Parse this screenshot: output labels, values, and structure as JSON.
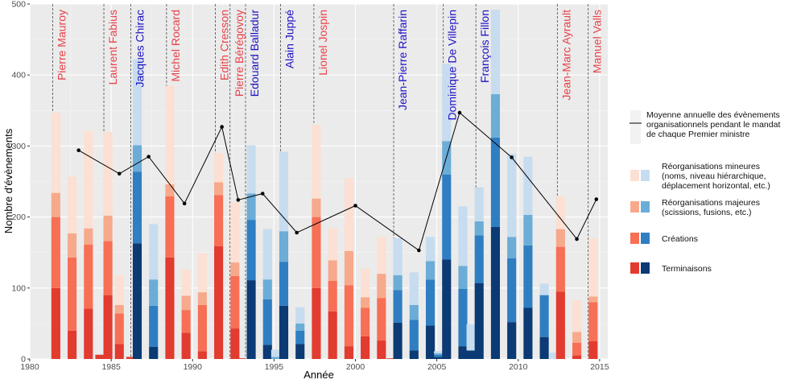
{
  "chart_data": {
    "type": "bar",
    "xlabel": "Année",
    "ylabel": "Nombre d'évènements",
    "xlim": [
      1980,
      2015.5
    ],
    "ylim": [
      0,
      500
    ],
    "xticks": [
      1980,
      1985,
      1990,
      1995,
      2000,
      2005,
      2010,
      2015
    ],
    "yticks": [
      0,
      100,
      200,
      300,
      400,
      500
    ],
    "grid": true,
    "legend_position": "right",
    "series_order": [
      "Terminaisons",
      "Créations",
      "Réorganisations majeures",
      "Réorganisations mineures"
    ],
    "colors": {
      "left": {
        "Terminaisons": "#e23b2f",
        "Créations": "#f76f55",
        "Réorganisations majeures": "#f7a98b",
        "Réorganisations mineures": "#fbe0d3"
      },
      "right": {
        "Terminaisons": "#0b3a74",
        "Créations": "#2f7ec2",
        "Réorganisations majeures": "#6badd6",
        "Réorganisations mineures": "#c7dcef"
      }
    },
    "bars": [
      {
        "year": 1981.6,
        "side": "left",
        "values": [
          100,
          100,
          34,
          113
        ]
      },
      {
        "year": 1982.6,
        "side": "left",
        "values": [
          40,
          103,
          34,
          80
        ]
      },
      {
        "year": 1983.6,
        "side": "left",
        "values": [
          71,
          90,
          23,
          137
        ]
      },
      {
        "year": 1984.3,
        "side": "left",
        "values": [
          6,
          0,
          0,
          0
        ]
      },
      {
        "year": 1984.8,
        "side": "left",
        "values": [
          90,
          76,
          36,
          118
        ]
      },
      {
        "year": 1985.5,
        "side": "left",
        "values": [
          21,
          43,
          12,
          42
        ]
      },
      {
        "year": 1986.2,
        "side": "left",
        "values": [
          3,
          0,
          0,
          0
        ]
      },
      {
        "year": 1986.6,
        "side": "right",
        "values": [
          163,
          101,
          37,
          121
        ]
      },
      {
        "year": 1987.6,
        "side": "right",
        "values": [
          17,
          58,
          37,
          78
        ]
      },
      {
        "year": 1988.6,
        "side": "left",
        "values": [
          143,
          86,
          17,
          139
        ]
      },
      {
        "year": 1989.6,
        "side": "left",
        "values": [
          37,
          32,
          20,
          37
        ]
      },
      {
        "year": 1990.6,
        "side": "left",
        "values": [
          11,
          65,
          18,
          55
        ]
      },
      {
        "year": 1991.6,
        "side": "left",
        "values": [
          159,
          72,
          18,
          41
        ]
      },
      {
        "year": 1992.6,
        "side": "left",
        "values": [
          43,
          74,
          19,
          85
        ]
      },
      {
        "year": 1993.0,
        "side": "left",
        "values": [
          1,
          0,
          0,
          0
        ]
      },
      {
        "year": 1993.6,
        "side": "right",
        "values": [
          111,
          85,
          37,
          68
        ]
      },
      {
        "year": 1994.6,
        "side": "right",
        "values": [
          20,
          64,
          28,
          71
        ]
      },
      {
        "year": 1995.1,
        "side": "right",
        "values": [
          0,
          0,
          3,
          10
        ]
      },
      {
        "year": 1995.6,
        "side": "right",
        "values": [
          75,
          62,
          43,
          112
        ]
      },
      {
        "year": 1996.6,
        "side": "right",
        "values": [
          21,
          19,
          10,
          23
        ]
      },
      {
        "year": 1997.6,
        "side": "left",
        "values": [
          100,
          100,
          26,
          104
        ]
      },
      {
        "year": 1998.6,
        "side": "left",
        "values": [
          67,
          43,
          29,
          45
        ]
      },
      {
        "year": 1999.6,
        "side": "left",
        "values": [
          18,
          86,
          48,
          103
        ]
      },
      {
        "year": 2000.6,
        "side": "left",
        "values": [
          32,
          40,
          15,
          40
        ]
      },
      {
        "year": 2001.6,
        "side": "left",
        "values": [
          26,
          60,
          34,
          52
        ]
      },
      {
        "year": 2002.2,
        "side": "left",
        "values": [
          1,
          0,
          0,
          0
        ]
      },
      {
        "year": 2002.6,
        "side": "right",
        "values": [
          51,
          46,
          21,
          52
        ]
      },
      {
        "year": 2003.6,
        "side": "right",
        "values": [
          12,
          43,
          21,
          46
        ]
      },
      {
        "year": 2004.6,
        "side": "right",
        "values": [
          47,
          65,
          26,
          34
        ]
      },
      {
        "year": 2005.1,
        "side": "right",
        "values": [
          3,
          3,
          2,
          3
        ]
      },
      {
        "year": 2005.6,
        "side": "right",
        "values": [
          140,
          120,
          47,
          109
        ]
      },
      {
        "year": 2006.6,
        "side": "right",
        "values": [
          18,
          81,
          32,
          84
        ]
      },
      {
        "year": 2007.1,
        "side": "right",
        "values": [
          12,
          0,
          0,
          37
        ]
      },
      {
        "year": 2007.6,
        "side": "right",
        "values": [
          107,
          67,
          20,
          48
        ]
      },
      {
        "year": 2008.6,
        "side": "right",
        "values": [
          186,
          126,
          61,
          119
        ]
      },
      {
        "year": 2009.6,
        "side": "right",
        "values": [
          52,
          90,
          30,
          117
        ]
      },
      {
        "year": 2010.6,
        "side": "right",
        "values": [
          72,
          88,
          43,
          82
        ]
      },
      {
        "year": 2011.6,
        "side": "right",
        "values": [
          31,
          59,
          0,
          16
        ]
      },
      {
        "year": 2012.2,
        "side": "right",
        "values": [
          0,
          0,
          0,
          9
        ]
      },
      {
        "year": 2012.6,
        "side": "left",
        "values": [
          95,
          63,
          25,
          46
        ]
      },
      {
        "year": 2013.6,
        "side": "left",
        "values": [
          5,
          18,
          15,
          45
        ]
      },
      {
        "year": 2014.6,
        "side": "left",
        "values": [
          25,
          55,
          8,
          82
        ]
      }
    ],
    "line": {
      "name": "Moyenne annuelle des évènements organisationnels pendant le mandat de chaque Premier ministre",
      "points": [
        {
          "x": 1983,
          "y": 294
        },
        {
          "x": 1985.5,
          "y": 261
        },
        {
          "x": 1987.3,
          "y": 285
        },
        {
          "x": 1989.5,
          "y": 219
        },
        {
          "x": 1991.8,
          "y": 327
        },
        {
          "x": 1992.8,
          "y": 224
        },
        {
          "x": 1994.3,
          "y": 233
        },
        {
          "x": 1996.4,
          "y": 178
        },
        {
          "x": 2000.0,
          "y": 216
        },
        {
          "x": 2003.9,
          "y": 153
        },
        {
          "x": 2006.4,
          "y": 347
        },
        {
          "x": 2009.6,
          "y": 284
        },
        {
          "x": 2013.6,
          "y": 169
        },
        {
          "x": 2014.8,
          "y": 225
        }
      ]
    },
    "prime_ministers": [
      {
        "name": "Pierre Mauroy",
        "start": 1981.4,
        "color": "#e8424a"
      },
      {
        "name": "Laurent Fabius",
        "start": 1984.55,
        "color": "#e8424a"
      },
      {
        "name": "Jacques Chirac",
        "start": 1986.2,
        "color": "#1e12c4"
      },
      {
        "name": "Michel Rocard",
        "start": 1988.4,
        "color": "#e8424a"
      },
      {
        "name": "Edith Cresson",
        "start": 1991.4,
        "color": "#e8424a"
      },
      {
        "name": "Pierre Bérégovoy",
        "start": 1992.3,
        "color": "#e8424a"
      },
      {
        "name": "Edouard Balladur",
        "start": 1993.25,
        "color": "#1e12c4"
      },
      {
        "name": "Alain Juppé",
        "start": 1995.4,
        "color": "#1e12c4"
      },
      {
        "name": "Lionel Jospin",
        "start": 1997.45,
        "color": "#e8424a"
      },
      {
        "name": "Jean-Pierre Raffarin",
        "start": 2002.35,
        "color": "#1e12c4"
      },
      {
        "name": "Dominique De Villepin",
        "start": 2005.4,
        "color": "#1e12c4"
      },
      {
        "name": "François Fillon",
        "start": 2007.4,
        "color": "#1e12c4"
      },
      {
        "name": "Jean-Marc Ayrault",
        "start": 2012.4,
        "color": "#e8424a"
      },
      {
        "name": "Manuel Valls",
        "start": 2014.3,
        "color": "#e8424a"
      }
    ]
  },
  "legend": {
    "line_label": [
      "Moyenne annuelle des évènements",
      "organisationnels pendant le mandat",
      "de chaque Premier ministre"
    ],
    "items": [
      {
        "key": "Réorganisations mineures",
        "label": [
          "Réorganisations mineures",
          "(noms, niveau hiérarchique,",
          "déplacement horizontal, etc.)"
        ]
      },
      {
        "key": "Réorganisations majeures",
        "label": [
          "Réorganisations majeures",
          "(scissions, fusions, etc.)"
        ]
      },
      {
        "key": "Créations",
        "label": [
          "Créations"
        ]
      },
      {
        "key": "Terminaisons",
        "label": [
          "Terminaisons"
        ]
      }
    ]
  }
}
